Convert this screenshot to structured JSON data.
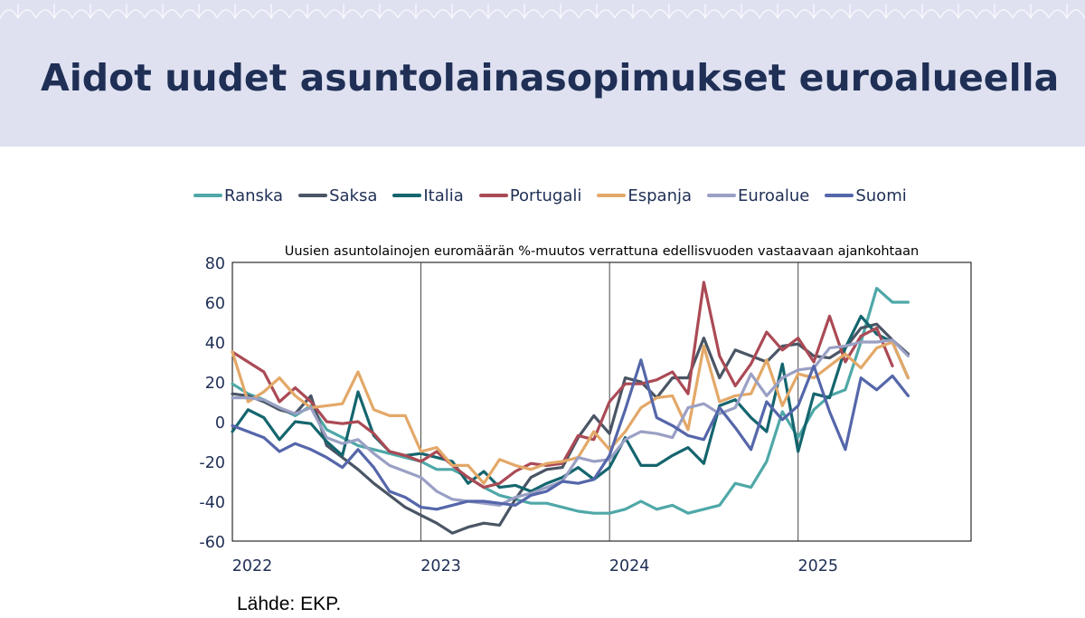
{
  "slide_title": "Aidot uudet asuntolainasopimukset euroalueella",
  "source_note": "Lähde: EKP.",
  "legend": [
    {
      "name": "Ranska",
      "color": "#4fa8a8"
    },
    {
      "name": "Saksa",
      "color": "#4a5565"
    },
    {
      "name": "Italia",
      "color": "#14656e"
    },
    {
      "name": "Portugali",
      "color": "#aa4a55"
    },
    {
      "name": "Espanja",
      "color": "#e3a868"
    },
    {
      "name": "Euroalue",
      "color": "#9aa0c4"
    },
    {
      "name": "Suomi",
      "color": "#5566aa"
    }
  ],
  "chart_data": {
    "type": "line",
    "title": "Uusien asuntolainojen euromäärän %-muutos verrattuna edellisvuoden vastaavaan ajankohtaan",
    "xlabel": "",
    "ylabel": "",
    "ylim": [
      -60,
      80
    ],
    "yticks": [
      80,
      60,
      40,
      20,
      0,
      -20,
      -40,
      -60
    ],
    "xlim": [
      2022.0,
      2025.917
    ],
    "xticks": [
      {
        "label": "2022",
        "value": 2022.0
      },
      {
        "label": "2023",
        "value": 2023.0
      },
      {
        "label": "2024",
        "value": 2024.0
      },
      {
        "label": "2025",
        "value": 2025.0
      }
    ],
    "x_start": 2022.0,
    "x_step": 0.08333,
    "grid": "vertical-yearly",
    "series": [
      {
        "name": "Ranska",
        "color": "#4fa8a8",
        "values": [
          19,
          14,
          11,
          7,
          3,
          8,
          -4,
          -8,
          -12,
          -14,
          -16,
          -18,
          -20,
          -24,
          -24,
          -28,
          -33,
          -37,
          -39,
          -41,
          -41,
          -43,
          -45,
          -46,
          -46,
          -44,
          -40,
          -44,
          -42,
          -46,
          -44,
          -42,
          -31,
          -33,
          -20,
          5,
          -8,
          6,
          13,
          16,
          40,
          67,
          60,
          60
        ]
      },
      {
        "name": "Saksa",
        "color": "#4a5565",
        "values": [
          14,
          13,
          10,
          6,
          4,
          13,
          -12,
          -18,
          -24,
          -31,
          -37,
          -43,
          -47,
          -51,
          -56,
          -53,
          -51,
          -52,
          -39,
          -28,
          -24,
          -23,
          -8,
          3,
          -6,
          22,
          20,
          12,
          22,
          22,
          42,
          22,
          36,
          33,
          30,
          38,
          39,
          33,
          32,
          37,
          47,
          49,
          41,
          34
        ]
      },
      {
        "name": "Italia",
        "color": "#14656e",
        "values": [
          -5,
          6,
          2,
          -9,
          0,
          -1,
          -10,
          -17,
          15,
          -7,
          -15,
          -17,
          -16,
          -18,
          -20,
          -31,
          -25,
          -33,
          -32,
          -35,
          -31,
          -28,
          -23,
          -29,
          -23,
          -8,
          -22,
          -22,
          -17,
          -13,
          -21,
          8,
          11,
          2,
          -5,
          29,
          -15,
          14,
          12,
          37,
          53,
          44,
          40,
          22
        ]
      },
      {
        "name": "Portugali",
        "color": "#aa4a55",
        "values": [
          35,
          30,
          25,
          10,
          17,
          10,
          0,
          -1,
          0,
          -6,
          -15,
          -17,
          -20,
          -15,
          -22,
          -28,
          -33,
          -31,
          -25,
          -21,
          -22,
          -21,
          -7,
          -9,
          10,
          19,
          19,
          21,
          25,
          14,
          70,
          33,
          18,
          29,
          45,
          36,
          42,
          30,
          53,
          30,
          43,
          47,
          28
        ]
      },
      {
        "name": "Espanja",
        "color": "#e3a868",
        "values": [
          35,
          10,
          15,
          22,
          13,
          7,
          8,
          9,
          25,
          6,
          3,
          3,
          -15,
          -13,
          -22,
          -22,
          -31,
          -19,
          -22,
          -24,
          -21,
          -20,
          -18,
          -5,
          -14,
          -5,
          7,
          12,
          13,
          -4,
          38,
          10,
          13,
          14,
          31,
          8,
          24,
          22,
          28,
          34,
          27,
          37,
          40,
          22
        ]
      },
      {
        "name": "Euroalue",
        "color": "#9aa0c4",
        "values": [
          12,
          12,
          11,
          7,
          4,
          7,
          -8,
          -11,
          -9,
          -16,
          -22,
          -25,
          -28,
          -35,
          -39,
          -40,
          -41,
          -42,
          -38,
          -36,
          -33,
          -30,
          -18,
          -20,
          -19,
          -9,
          -5,
          -6,
          -8,
          7,
          9,
          4,
          7,
          24,
          13,
          22,
          26,
          27,
          37,
          38,
          40,
          40,
          41,
          33
        ]
      },
      {
        "name": "Suomi",
        "color": "#5566aa",
        "values": [
          -2,
          -5,
          -8,
          -15,
          -11,
          -14,
          -18,
          -23,
          -14,
          -23,
          -35,
          -38,
          -43,
          -44,
          -42,
          -40,
          -40,
          -41,
          -42,
          -37,
          -35,
          -30,
          -31,
          -29,
          -17,
          6,
          31,
          2,
          -2,
          -7,
          -9,
          7,
          -3,
          -14,
          10,
          1,
          8,
          28,
          5,
          -14,
          22,
          16,
          23,
          13
        ]
      }
    ]
  }
}
